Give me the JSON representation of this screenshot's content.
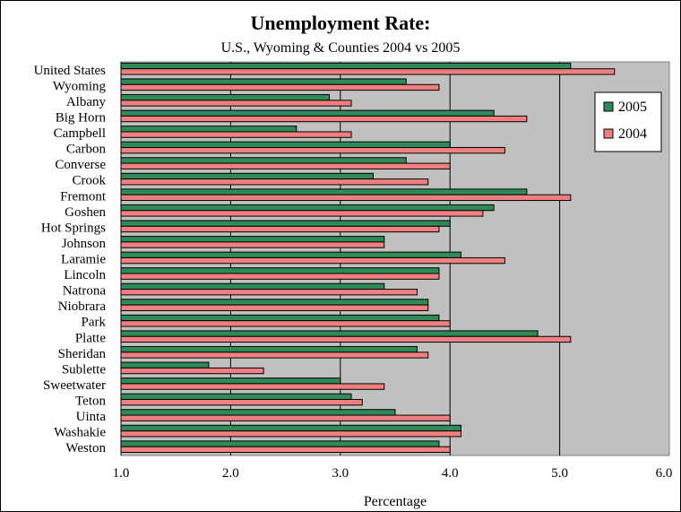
{
  "chart_data": {
    "type": "bar",
    "orientation": "horizontal",
    "title": "Unemployment Rate:",
    "subtitle": "U.S., Wyoming & Counties 2004 vs 2005",
    "xlabel": "Percentage",
    "ylabel": "",
    "xlim": [
      1.0,
      6.0
    ],
    "xticks": [
      "1.0",
      "2.0",
      "3.0",
      "4.0",
      "5.0",
      "6.0"
    ],
    "grid": "vertical major gridlines",
    "plot_background": "#c0c0c0",
    "legend_position": "right",
    "categories": [
      "United States",
      "Wyoming",
      "Albany",
      "Big Horn",
      "Campbell",
      "Carbon",
      "Converse",
      "Crook",
      "Fremont",
      "Goshen",
      "Hot Springs",
      "Johnson",
      "Laramie",
      "Lincoln",
      "Natrona",
      "Niobrara",
      "Park",
      "Platte",
      "Sheridan",
      "Sublette",
      "Sweetwater",
      "Teton",
      "Uinta",
      "Washakie",
      "Weston"
    ],
    "series": [
      {
        "name": "2005",
        "color": "#2e8b57",
        "values": [
          5.1,
          3.6,
          2.9,
          4.4,
          2.6,
          4.0,
          3.6,
          3.3,
          4.7,
          4.4,
          4.0,
          3.4,
          4.1,
          3.9,
          3.4,
          3.8,
          3.9,
          4.8,
          3.7,
          1.8,
          3.0,
          3.1,
          3.5,
          4.1,
          3.9
        ]
      },
      {
        "name": "2004",
        "color": "#f08080",
        "values": [
          5.5,
          3.9,
          3.1,
          4.7,
          3.1,
          4.5,
          4.0,
          3.8,
          5.1,
          4.3,
          3.9,
          3.4,
          4.5,
          3.9,
          3.7,
          3.8,
          4.0,
          5.1,
          3.8,
          2.3,
          3.4,
          3.2,
          4.0,
          4.1,
          4.0
        ]
      }
    ]
  }
}
